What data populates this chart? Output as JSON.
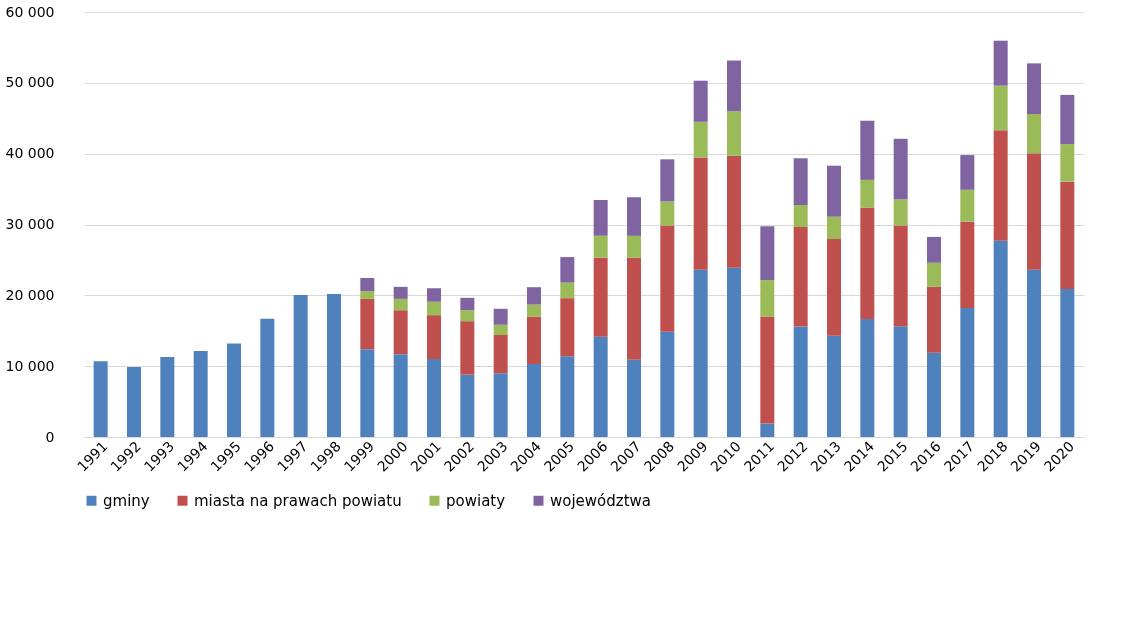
{
  "chart_data": {
    "type": "bar",
    "stacked": true,
    "categories": [
      "1991",
      "1992",
      "1993",
      "1994",
      "1995",
      "1996",
      "1997",
      "1998",
      "1999",
      "2000",
      "2001",
      "2002",
      "2003",
      "2004",
      "2005",
      "2006",
      "2007",
      "2008",
      "2009",
      "2010",
      "2011",
      "2012",
      "2013",
      "2014",
      "2015",
      "2016",
      "2017",
      "2018",
      "2019",
      "2020"
    ],
    "series": [
      {
        "name": "gminy",
        "color": "#4f81bd",
        "values": [
          10700,
          9900,
          11300,
          12150,
          13200,
          16700,
          20050,
          20200,
          12400,
          11700,
          11000,
          8800,
          9000,
          10300,
          11400,
          14150,
          10900,
          14850,
          23600,
          23900,
          1900,
          15600,
          14300,
          16650,
          15650,
          11900,
          18200,
          27700,
          23600,
          20900
        ]
      },
      {
        "name": "miasta na prawach powiatu",
        "color": "#c0504d",
        "values": [
          null,
          null,
          null,
          null,
          null,
          null,
          null,
          null,
          7100,
          6200,
          6200,
          7550,
          5400,
          6700,
          8200,
          11150,
          14400,
          15000,
          15850,
          15800,
          15100,
          14050,
          13650,
          15750,
          14200,
          9300,
          12200,
          15600,
          16450,
          15150
        ]
      },
      {
        "name": "powiaty",
        "color": "#9bbb59",
        "values": [
          null,
          null,
          null,
          null,
          null,
          null,
          null,
          null,
          1100,
          1600,
          1900,
          1550,
          1450,
          1700,
          2200,
          3100,
          3100,
          3400,
          5050,
          6300,
          5150,
          3100,
          3150,
          3900,
          3700,
          3400,
          4500,
          6300,
          5550,
          5300
        ]
      },
      {
        "name": "województwa",
        "color": "#8064a2",
        "values": [
          null,
          null,
          null,
          null,
          null,
          null,
          null,
          null,
          1850,
          1700,
          1900,
          1750,
          2250,
          2450,
          3600,
          5050,
          5450,
          5950,
          5800,
          7150,
          7600,
          6600,
          7200,
          8350,
          8550,
          3650,
          4900,
          6350,
          7150,
          6950
        ]
      }
    ],
    "ylim": [
      0,
      60000
    ],
    "yticks": [
      {
        "value": 0,
        "label": "0"
      },
      {
        "value": 10000,
        "label": "10 000"
      },
      {
        "value": 20000,
        "label": "20 000"
      },
      {
        "value": 30000,
        "label": "30 000"
      },
      {
        "value": 40000,
        "label": "40 000"
      },
      {
        "value": 50000,
        "label": "50 000"
      },
      {
        "value": 60000,
        "label": "60 000"
      }
    ],
    "grid": "y",
    "legend": "bottom"
  }
}
